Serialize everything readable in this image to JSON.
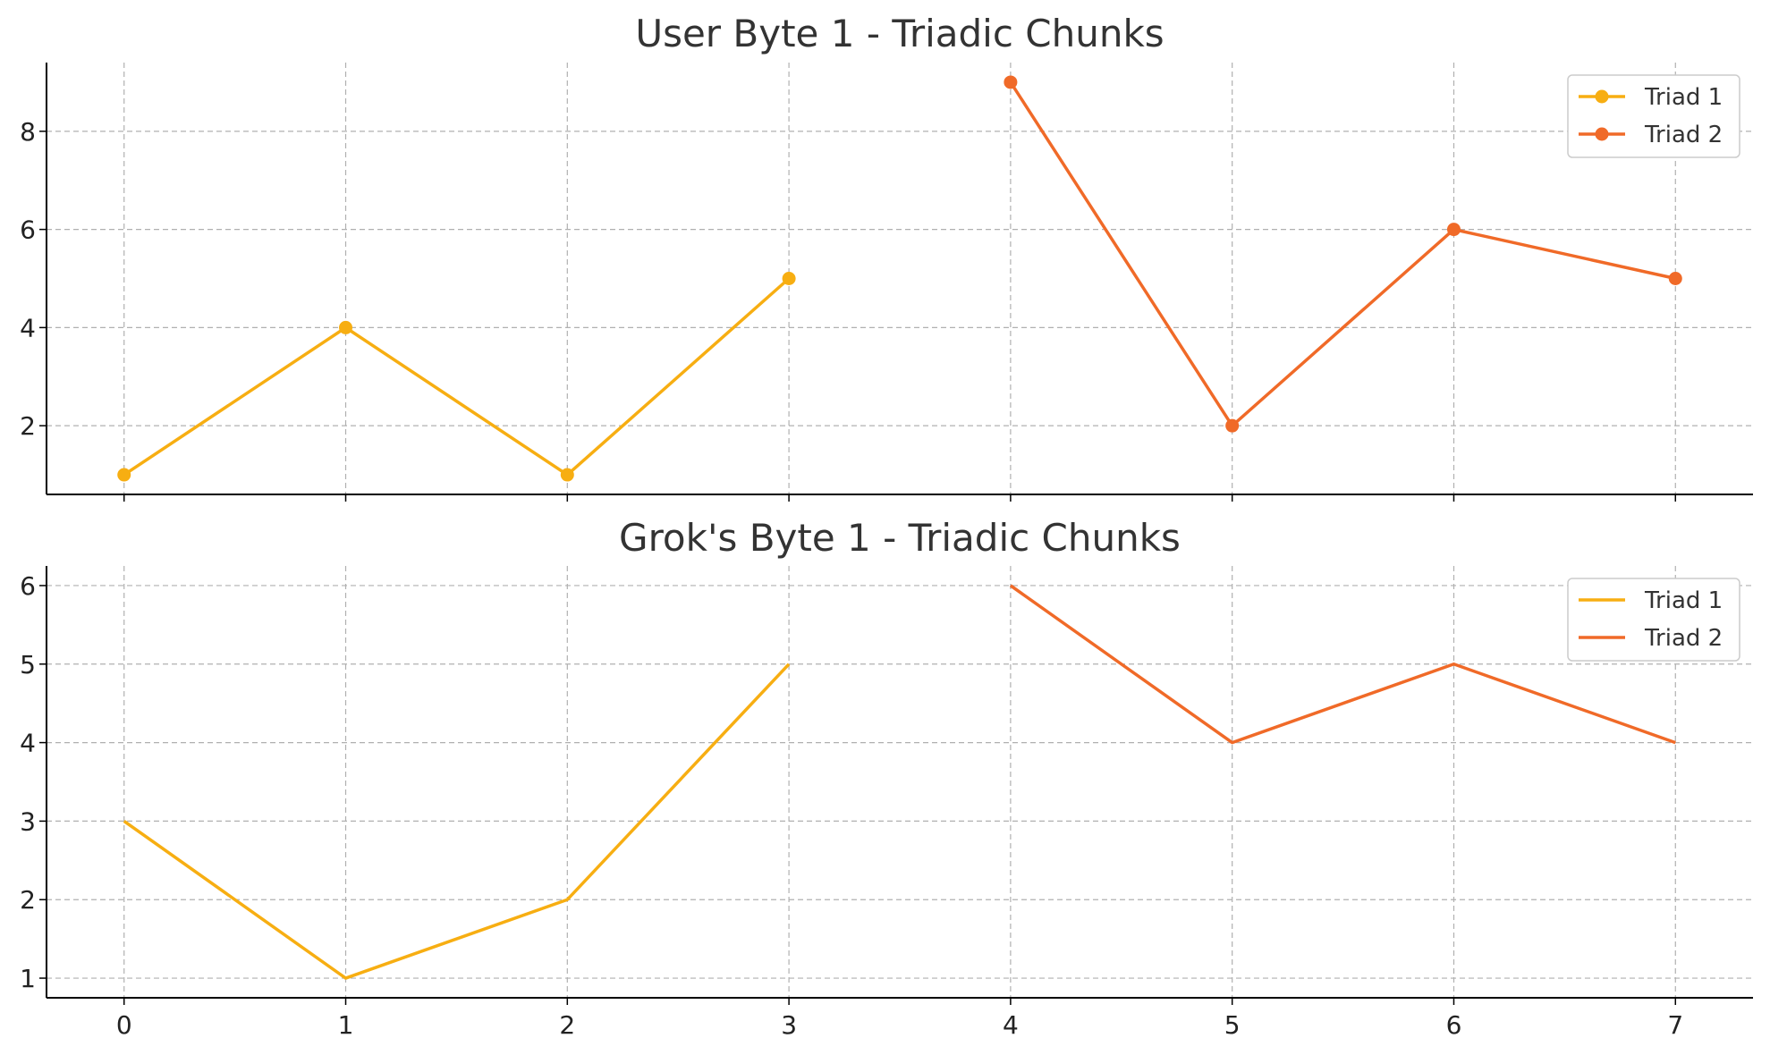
{
  "colors": {
    "triad1": "#F7AE12",
    "triad2": "#F06A28",
    "grid": "#b0b0b0",
    "axis": "#000000",
    "legend_border": "#cccccc"
  },
  "chart_data": [
    {
      "type": "line",
      "title": "User Byte 1 - Triadic Chunks",
      "xlabel": "",
      "ylabel": "",
      "xlim": [
        -0.35,
        7.35
      ],
      "ylim": [
        0.6,
        9.4
      ],
      "x_ticks": [
        0,
        1,
        2,
        3,
        4,
        5,
        6,
        7
      ],
      "x_tick_labels_shown": false,
      "y_ticks": [
        2,
        4,
        6,
        8
      ],
      "grid": true,
      "legend": "top-right",
      "markers": true,
      "series": [
        {
          "name": "Triad 1",
          "color_key": "triad1",
          "x": [
            0,
            1,
            2,
            3
          ],
          "values": [
            1,
            4,
            1,
            5
          ]
        },
        {
          "name": "Triad 2",
          "color_key": "triad2",
          "x": [
            4,
            5,
            6,
            7
          ],
          "values": [
            9,
            2,
            6,
            5
          ]
        }
      ]
    },
    {
      "type": "line",
      "title": "Grok's Byte 1 - Triadic Chunks",
      "xlabel": "",
      "ylabel": "",
      "xlim": [
        -0.35,
        7.35
      ],
      "ylim": [
        0.75,
        6.25
      ],
      "x_ticks": [
        0,
        1,
        2,
        3,
        4,
        5,
        6,
        7
      ],
      "x_tick_labels_shown": true,
      "y_ticks": [
        1,
        2,
        3,
        4,
        5,
        6
      ],
      "grid": true,
      "legend": "top-right",
      "markers": false,
      "series": [
        {
          "name": "Triad 1",
          "color_key": "triad1",
          "x": [
            0,
            1,
            2,
            3
          ],
          "values": [
            3,
            1,
            2,
            5
          ]
        },
        {
          "name": "Triad 2",
          "color_key": "triad2",
          "x": [
            4,
            5,
            6,
            7
          ],
          "values": [
            6,
            4,
            5,
            4
          ]
        }
      ]
    }
  ]
}
